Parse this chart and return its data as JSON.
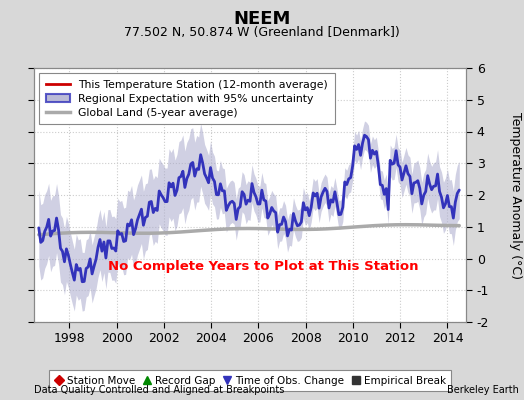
{
  "title": "NEEM",
  "subtitle": "77.502 N, 50.874 W (Greenland [Denmark])",
  "ylabel": "Temperature Anomaly (°C)",
  "ylim": [
    -2,
    6
  ],
  "yticks": [
    -2,
    -1,
    0,
    1,
    2,
    3,
    4,
    5,
    6
  ],
  "xlim": [
    1996.5,
    2014.8
  ],
  "xticks": [
    1998,
    2000,
    2002,
    2004,
    2006,
    2008,
    2010,
    2012,
    2014
  ],
  "footnote_left": "Data Quality Controlled and Aligned at Breakpoints",
  "footnote_right": "Berkeley Earth",
  "no_data_text": "No Complete Years to Plot at This Station",
  "legend1": [
    {
      "label": "This Temperature Station (12-month average)",
      "color": "#cc0000",
      "lw": 2
    },
    {
      "label": "Regional Expectation with 95% uncertainty",
      "color": "#3333bb",
      "lw": 2
    },
    {
      "label": "Global Land (5-year average)",
      "color": "#aaaaaa",
      "lw": 2.5
    }
  ],
  "legend2": [
    {
      "label": "Station Move",
      "marker": "D",
      "color": "#cc0000"
    },
    {
      "label": "Record Gap",
      "marker": "^",
      "color": "#008800"
    },
    {
      "label": "Time of Obs. Change",
      "marker": "v",
      "color": "#3333bb"
    },
    {
      "label": "Empirical Break",
      "marker": "s",
      "color": "#333333"
    }
  ],
  "background_color": "#d8d8d8",
  "plot_bg_color": "#ffffff",
  "fill_color": "#aaaacc",
  "fill_alpha": 0.55,
  "grid_color": "#cccccc",
  "grid_style": ":"
}
